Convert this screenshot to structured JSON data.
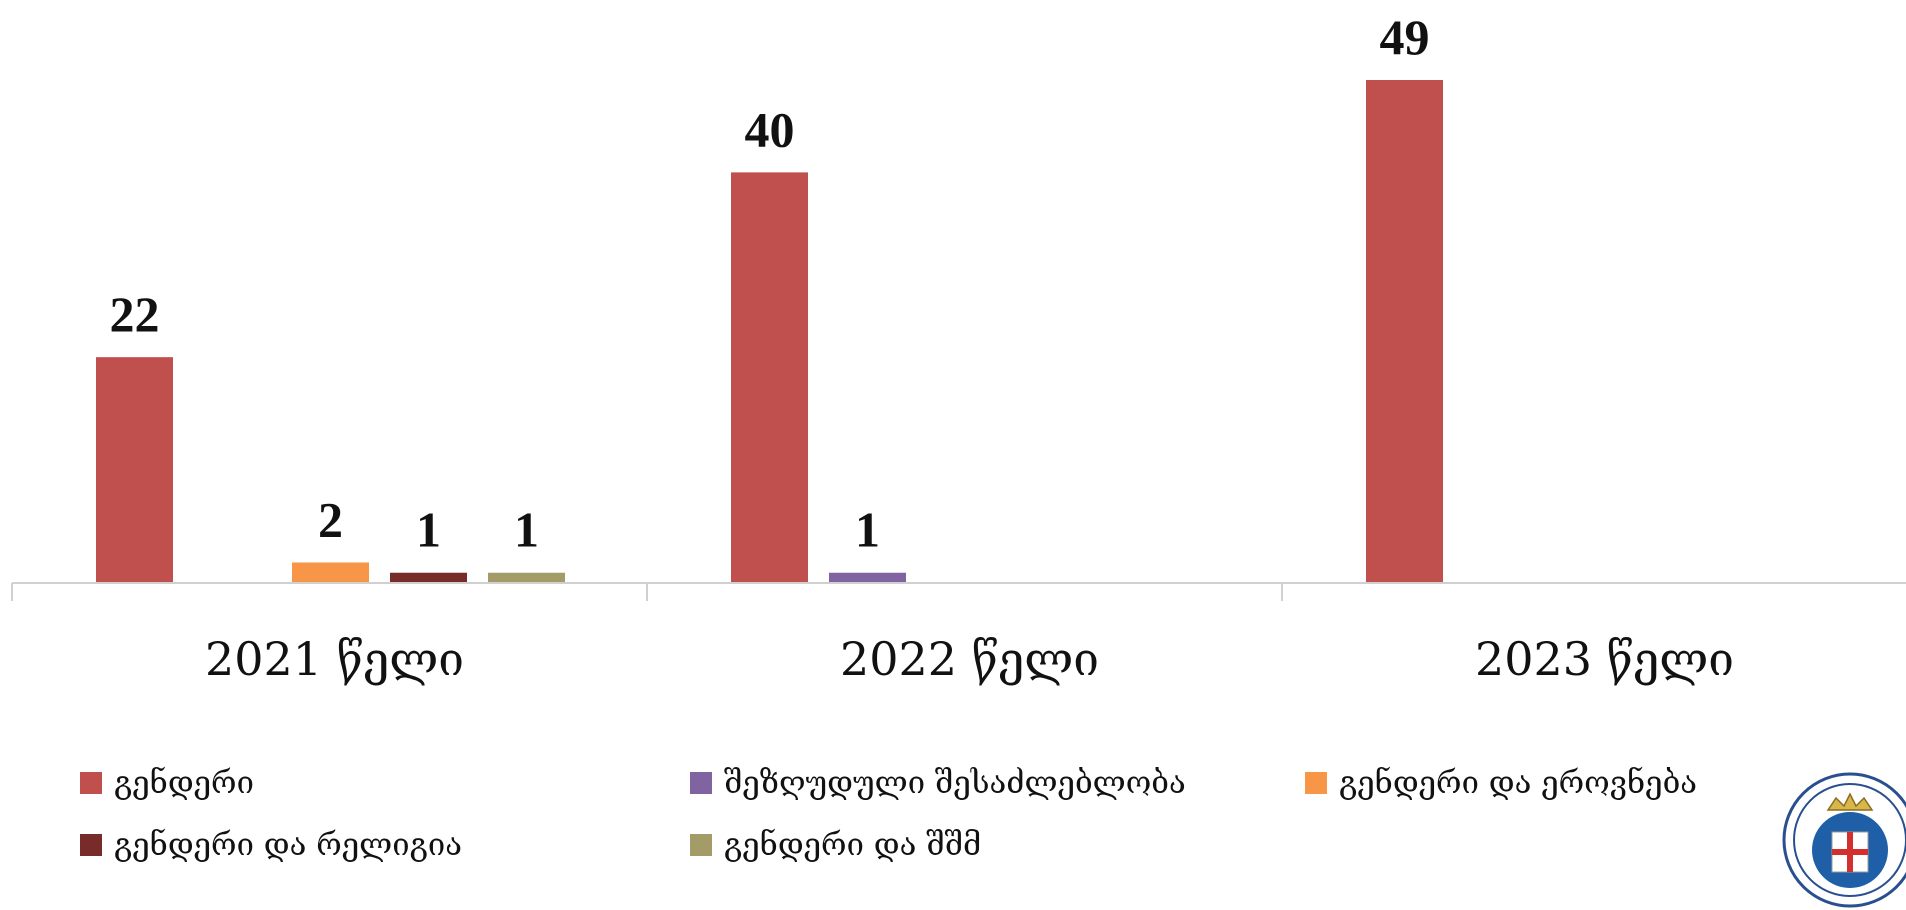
{
  "chart_data": {
    "type": "bar",
    "categories": [
      "2021 წელი",
      "2022 წელი",
      "2023 წელი"
    ],
    "series": [
      {
        "name": "გენდერი",
        "color": "#C0504D",
        "values": [
          22,
          40,
          49
        ]
      },
      {
        "name": "შეზღუდული შესაძლებლობა",
        "color": "#8064A2",
        "values": [
          0,
          1,
          0
        ]
      },
      {
        "name": "გენდერი და ეროვნება",
        "color": "#F79646",
        "values": [
          2,
          0,
          0
        ]
      },
      {
        "name": "გენდერი და რელიგია",
        "color": "#772C2A",
        "values": [
          1,
          0,
          0
        ]
      },
      {
        "name": "გენდერი და შშმ",
        "color": "#A39C69",
        "values": [
          1,
          0,
          0
        ]
      }
    ],
    "bar_order": [
      [
        "გენდერი",
        "შეზღუდული შესაძლებლობა",
        "გენდერი და ეროვნება",
        "გენდერი და რელიგია",
        "გენდერი და შშმ"
      ],
      [
        "გენდერი",
        "შეზღუდული შესაძლებლობა",
        "გენდერი და ეროვნება",
        "გენდერი და რელიგია",
        "გენდერი და შშმ"
      ],
      [
        "გენდერი",
        "შეზღუდული შესაძლებლობა",
        "გენდერი და ეროვნება",
        "გენდერი და რელიგია",
        "გენდერი და შშმ"
      ]
    ],
    "ylim": [
      0,
      50
    ],
    "grid": false,
    "legend_position": "bottom",
    "data_labels": true
  }
}
